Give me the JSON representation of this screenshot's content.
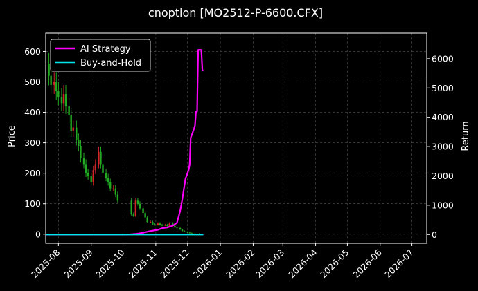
{
  "chart_data": {
    "type": "line",
    "title": "cnoption [MO2512-P-6600.CFX]",
    "xlabel": "",
    "ylabel": "Price",
    "y2label": "Return",
    "xlim": [
      "2025-07-20",
      "2026-07-15"
    ],
    "ylim": [
      -30,
      660
    ],
    "y2lim": [
      -300,
      6870
    ],
    "grid": true,
    "legend": {
      "position": "top-left",
      "entries": [
        "AI Strategy",
        "Buy-and-Hold"
      ]
    },
    "x_ticks": [
      "2025-08",
      "2025-09",
      "2025-10",
      "2025-11",
      "2025-12",
      "2026-01",
      "2026-02",
      "2026-03",
      "2026-04",
      "2026-05",
      "2026-06",
      "2026-07"
    ],
    "y_ticks": [
      0,
      100,
      200,
      300,
      400,
      500,
      600
    ],
    "y2_ticks": [
      0,
      1000,
      2000,
      3000,
      4000,
      5000,
      6000
    ],
    "colors": {
      "up": "#d62728",
      "down": "#22aa22",
      "ai": "#ff00ff",
      "bh": "#00e5ee",
      "grid": "#555555"
    },
    "price_series": [
      {
        "x": "2025-07-20",
        "y": 560
      },
      {
        "x": "2025-07-23",
        "y": 520
      },
      {
        "x": "2025-07-25",
        "y": 490
      },
      {
        "x": "2025-07-28",
        "y": 500
      },
      {
        "x": "2025-07-30",
        "y": 470
      },
      {
        "x": "2025-08-01",
        "y": 450
      },
      {
        "x": "2025-08-04",
        "y": 430
      },
      {
        "x": "2025-08-06",
        "y": 460
      },
      {
        "x": "2025-08-08",
        "y": 420
      },
      {
        "x": "2025-08-11",
        "y": 390
      },
      {
        "x": "2025-08-13",
        "y": 340
      },
      {
        "x": "2025-08-15",
        "y": 350
      },
      {
        "x": "2025-08-18",
        "y": 310
      },
      {
        "x": "2025-08-20",
        "y": 290
      },
      {
        "x": "2025-08-22",
        "y": 250
      },
      {
        "x": "2025-08-25",
        "y": 230
      },
      {
        "x": "2025-08-27",
        "y": 200
      },
      {
        "x": "2025-08-29",
        "y": 190
      },
      {
        "x": "2025-09-01",
        "y": 170
      },
      {
        "x": "2025-09-03",
        "y": 210
      },
      {
        "x": "2025-09-05",
        "y": 230
      },
      {
        "x": "2025-09-08",
        "y": 270
      },
      {
        "x": "2025-09-10",
        "y": 230
      },
      {
        "x": "2025-09-12",
        "y": 200
      },
      {
        "x": "2025-09-15",
        "y": 185
      },
      {
        "x": "2025-09-17",
        "y": 170
      },
      {
        "x": "2025-09-19",
        "y": 150
      },
      {
        "x": "2025-09-22",
        "y": 150
      },
      {
        "x": "2025-09-24",
        "y": 130
      },
      {
        "x": "2025-09-26",
        "y": 110
      },
      {
        "x": "2025-10-09",
        "y": 65
      },
      {
        "x": "2025-10-11",
        "y": 60
      },
      {
        "x": "2025-10-13",
        "y": 110
      },
      {
        "x": "2025-10-15",
        "y": 100
      },
      {
        "x": "2025-10-17",
        "y": 85
      },
      {
        "x": "2025-10-20",
        "y": 70
      },
      {
        "x": "2025-10-22",
        "y": 55
      },
      {
        "x": "2025-10-24",
        "y": 40
      },
      {
        "x": "2025-10-27",
        "y": 40
      },
      {
        "x": "2025-10-29",
        "y": 32
      },
      {
        "x": "2025-10-31",
        "y": 30
      },
      {
        "x": "2025-11-03",
        "y": 35
      },
      {
        "x": "2025-11-05",
        "y": 30
      },
      {
        "x": "2025-11-07",
        "y": 28
      },
      {
        "x": "2025-11-10",
        "y": 30
      },
      {
        "x": "2025-11-12",
        "y": 26
      },
      {
        "x": "2025-11-14",
        "y": 35
      },
      {
        "x": "2025-11-17",
        "y": 28
      },
      {
        "x": "2025-11-19",
        "y": 22
      },
      {
        "x": "2025-11-21",
        "y": 20
      },
      {
        "x": "2025-11-24",
        "y": 15
      },
      {
        "x": "2025-11-26",
        "y": 10
      },
      {
        "x": "2025-11-28",
        "y": 7
      },
      {
        "x": "2025-12-01",
        "y": 5
      },
      {
        "x": "2025-12-03",
        "y": 3
      },
      {
        "x": "2025-12-05",
        "y": 2
      },
      {
        "x": "2025-12-08",
        "y": 1
      },
      {
        "x": "2025-12-10",
        "y": 1
      },
      {
        "x": "2025-12-12",
        "y": 0
      }
    ],
    "series": [
      {
        "name": "AI Strategy",
        "axis": "right",
        "points": [
          {
            "x": "2025-07-20",
            "y": 0
          },
          {
            "x": "2025-10-05",
            "y": 0
          },
          {
            "x": "2025-10-13",
            "y": 20
          },
          {
            "x": "2025-10-20",
            "y": 60
          },
          {
            "x": "2025-10-27",
            "y": 120
          },
          {
            "x": "2025-11-03",
            "y": 160
          },
          {
            "x": "2025-11-07",
            "y": 220
          },
          {
            "x": "2025-11-12",
            "y": 240
          },
          {
            "x": "2025-11-17",
            "y": 300
          },
          {
            "x": "2025-11-21",
            "y": 400
          },
          {
            "x": "2025-11-24",
            "y": 800
          },
          {
            "x": "2025-11-26",
            "y": 1200
          },
          {
            "x": "2025-11-29",
            "y": 1900
          },
          {
            "x": "2025-12-02",
            "y": 2200
          },
          {
            "x": "2025-12-03",
            "y": 2400
          },
          {
            "x": "2025-12-04",
            "y": 3300
          },
          {
            "x": "2025-12-06",
            "y": 3500
          },
          {
            "x": "2025-12-08",
            "y": 3700
          },
          {
            "x": "2025-12-09",
            "y": 4200
          },
          {
            "x": "2025-12-10",
            "y": 4200
          },
          {
            "x": "2025-12-11",
            "y": 6300
          },
          {
            "x": "2025-12-14",
            "y": 6300
          },
          {
            "x": "2025-12-15",
            "y": 5600
          },
          {
            "x": "2025-12-16",
            "y": 5600
          }
        ]
      },
      {
        "name": "Buy-and-Hold",
        "axis": "right",
        "points": [
          {
            "x": "2025-07-20",
            "y": 0
          },
          {
            "x": "2025-12-16",
            "y": 0
          }
        ]
      }
    ]
  }
}
